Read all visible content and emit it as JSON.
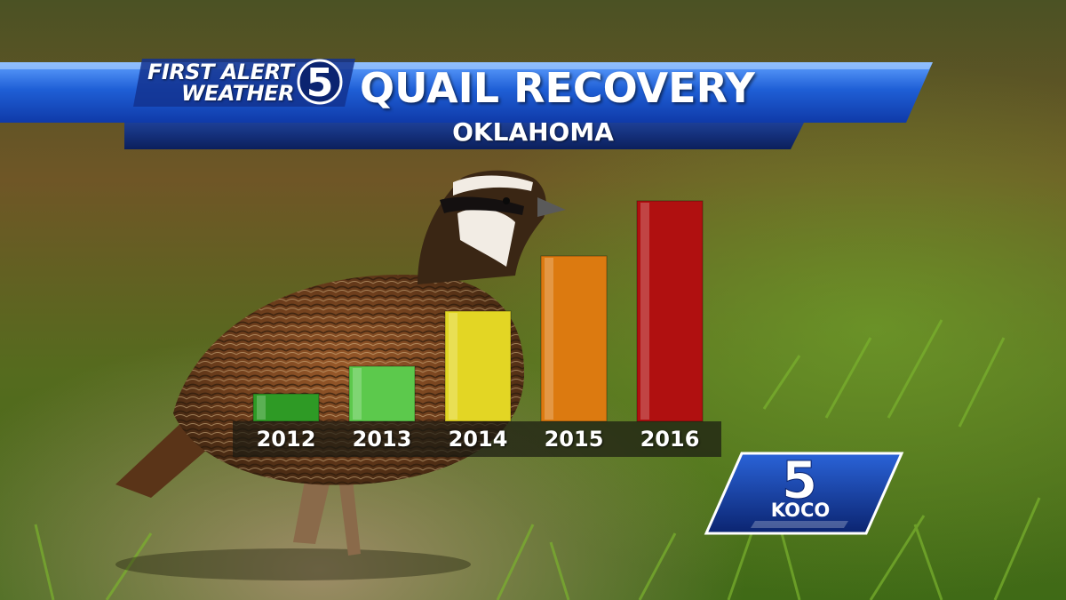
{
  "header": {
    "brand_line_1": "FIRST ALERT",
    "brand_line_2": "WEATHER",
    "channel_number": "5",
    "title": "QUAIL RECOVERY",
    "subtitle": "OKLAHOMA"
  },
  "station_logo": {
    "number": "5",
    "name": "KOCO"
  },
  "colors": {
    "banner_blue": "#1f5fd6",
    "banner_navy": "#102a70",
    "bar_2012": "#2e9a25",
    "bar_2013": "#5cc94c",
    "bar_2014": "#e3d624",
    "bar_2015": "#dc7a10",
    "bar_2016": "#b01010"
  },
  "chart_data": {
    "type": "bar",
    "categories": [
      "2012",
      "2013",
      "2014",
      "2015",
      "2016"
    ],
    "values": [
      1,
      2,
      4,
      6,
      8
    ],
    "ylim": [
      0,
      8
    ],
    "grid": false,
    "legend": "none"
  }
}
